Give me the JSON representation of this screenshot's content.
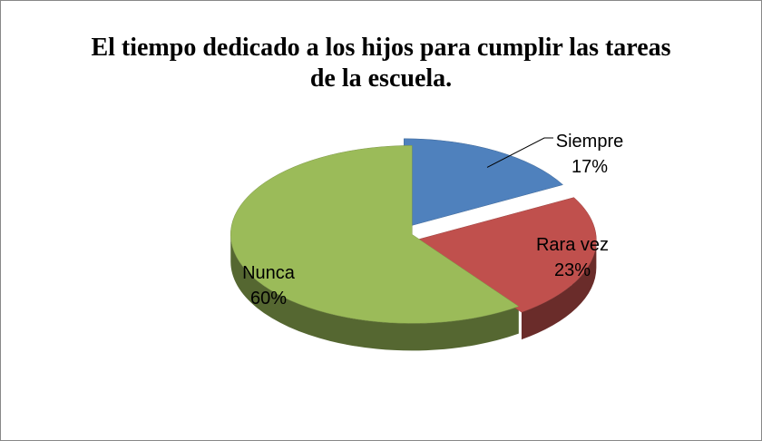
{
  "chart_data": {
    "type": "pie",
    "title": "El tiempo dedicado a los hijos para cumplir las tareas de la escuela.",
    "categories": [
      "Siempre",
      "Rara vez",
      "Nunca"
    ],
    "values": [
      17,
      23,
      60
    ],
    "value_labels": [
      "17%",
      "23%",
      "60%"
    ],
    "colors": [
      "#4f81bd",
      "#c0504d",
      "#9bbb59"
    ]
  }
}
